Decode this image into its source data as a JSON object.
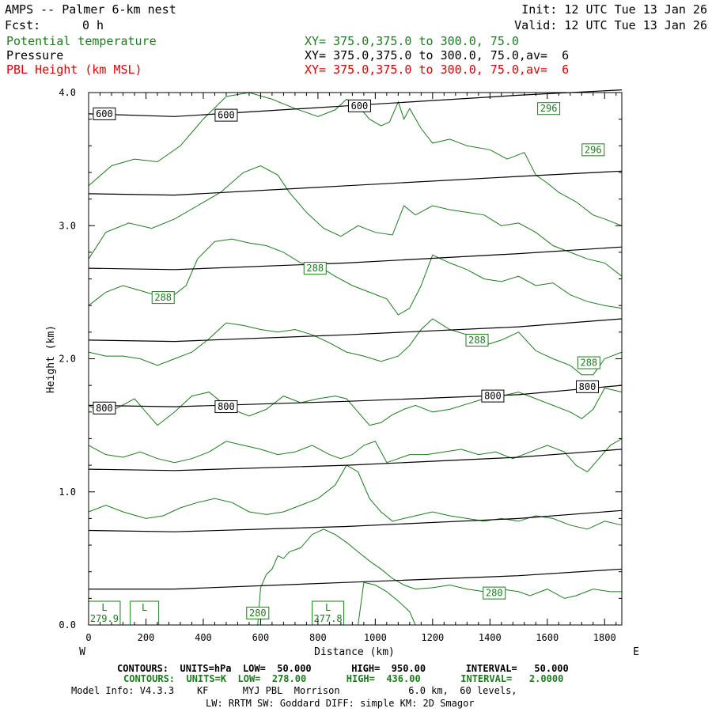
{
  "header": {
    "title": "AMPS -- Palmer 6-km nest",
    "fcst_label": "Fcst:",
    "fcst_value": "0 h",
    "init": "Init: 12 UTC Tue 13 Jan 26",
    "valid": "Valid: 12 UTC Tue 13 Jan 26",
    "fields": [
      {
        "name": "Potential temperature",
        "xy": "XY= 375.0,375.0 to 300.0, 75.0",
        "color": "#1f7a1f"
      },
      {
        "name": "Pressure",
        "xy": "XY= 375.0,375.0 to 300.0, 75.0,av=  6",
        "color": "#000000"
      },
      {
        "name": "PBL Height (km MSL)",
        "xy": "XY= 375.0,375.0 to 300.0, 75.0,av=  6",
        "color": "#e00000"
      }
    ]
  },
  "footer": {
    "line1": "CONTOURS:  UNITS=hPa  LOW=  50.000       HIGH=  950.00       INTERVAL=   50.000",
    "line2": "CONTOURS:  UNITS=K  LOW=  278.00       HIGH=  436.00       INTERVAL=   2.0000",
    "line3": "Model Info: V4.3.3    KF      MYJ PBL  Morrison            6.0 km,  60 levels,",
    "line4": "LW: RRTM SW: Goddard DIFF: simple KM: 2D Smagor"
  },
  "chart_data": {
    "type": "line",
    "xlabel": "Distance (km)",
    "ylabel": "Height (km)",
    "xlim": [
      0,
      1860
    ],
    "ylim": [
      0,
      4
    ],
    "x_ticks": [
      0,
      200,
      400,
      600,
      800,
      1000,
      1200,
      1400,
      1600,
      1800
    ],
    "y_ticks": [
      "0.0",
      "1.0",
      "2.0",
      "3.0",
      "4.0"
    ],
    "west_label": "W",
    "east_label": "E",
    "grid": false,
    "pressure_color": "#000000",
    "theta_color": "#1f7a1f",
    "pressure_contours": [
      {
        "x": [
          0,
          300,
          900,
          1500,
          1860
        ],
        "y": [
          3.84,
          3.82,
          3.9,
          3.98,
          4.02
        ]
      },
      {
        "x": [
          0,
          300,
          900,
          1500,
          1860
        ],
        "y": [
          3.24,
          3.23,
          3.3,
          3.37,
          3.41
        ]
      },
      {
        "x": [
          0,
          300,
          900,
          1500,
          1860
        ],
        "y": [
          2.68,
          2.67,
          2.72,
          2.79,
          2.84
        ]
      },
      {
        "x": [
          0,
          300,
          900,
          1500,
          1860
        ],
        "y": [
          2.14,
          2.13,
          2.18,
          2.24,
          2.3
        ]
      },
      {
        "x": [
          0,
          300,
          900,
          1500,
          1860
        ],
        "y": [
          1.65,
          1.64,
          1.68,
          1.73,
          1.8
        ]
      },
      {
        "x": [
          0,
          300,
          900,
          1500,
          1860
        ],
        "y": [
          1.17,
          1.16,
          1.2,
          1.26,
          1.32
        ]
      },
      {
        "x": [
          0,
          300,
          900,
          1500,
          1860
        ],
        "y": [
          0.71,
          0.7,
          0.74,
          0.8,
          0.86
        ]
      },
      {
        "x": [
          0,
          300,
          900,
          1500,
          1860
        ],
        "y": [
          0.27,
          0.27,
          0.32,
          0.37,
          0.42
        ]
      }
    ],
    "pressure_labels": [
      {
        "text": "600",
        "x": 55,
        "y": 3.84
      },
      {
        "text": "600",
        "x": 480,
        "y": 3.83
      },
      {
        "text": "600",
        "x": 945,
        "y": 3.9
      },
      {
        "text": "800",
        "x": 55,
        "y": 1.63
      },
      {
        "text": "800",
        "x": 480,
        "y": 1.64
      },
      {
        "text": "800",
        "x": 1410,
        "y": 1.72
      },
      {
        "text": "800",
        "x": 1740,
        "y": 1.79
      }
    ],
    "theta_contours": [
      {
        "x": [
          0,
          80,
          160,
          240,
          320,
          400,
          480,
          560,
          640,
          720,
          800,
          860,
          900,
          940,
          980,
          1020,
          1050,
          1080,
          1100,
          1120,
          1160,
          1200,
          1260,
          1320,
          1400,
          1460,
          1520,
          1560,
          1600,
          1640,
          1700,
          1760,
          1800,
          1860
        ],
        "y": [
          3.3,
          3.45,
          3.5,
          3.48,
          3.6,
          3.8,
          3.97,
          4.0,
          3.95,
          3.88,
          3.82,
          3.87,
          3.95,
          3.9,
          3.8,
          3.75,
          3.78,
          3.93,
          3.8,
          3.88,
          3.73,
          3.62,
          3.65,
          3.6,
          3.57,
          3.5,
          3.55,
          3.38,
          3.32,
          3.25,
          3.18,
          3.08,
          3.05,
          3.0
        ]
      },
      {
        "x": [
          0,
          60,
          140,
          220,
          300,
          380,
          460,
          540,
          600,
          660,
          700,
          760,
          820,
          880,
          940,
          1000,
          1060,
          1100,
          1140,
          1200,
          1260,
          1320,
          1380,
          1440,
          1500,
          1560,
          1620,
          1680,
          1740,
          1800,
          1860
        ],
        "y": [
          2.75,
          2.95,
          3.02,
          2.98,
          3.05,
          3.15,
          3.25,
          3.4,
          3.45,
          3.38,
          3.25,
          3.1,
          2.98,
          2.92,
          3.0,
          2.95,
          2.93,
          3.15,
          3.08,
          3.15,
          3.12,
          3.1,
          3.08,
          3.0,
          3.02,
          2.95,
          2.85,
          2.8,
          2.75,
          2.72,
          2.62
        ]
      },
      {
        "x": [
          0,
          60,
          120,
          200,
          280,
          340,
          380,
          440,
          500,
          560,
          620,
          680,
          740,
          800,
          860,
          920,
          980,
          1040,
          1080,
          1120,
          1160,
          1200,
          1260,
          1320,
          1380,
          1440,
          1500,
          1560,
          1620,
          1680,
          1740,
          1800,
          1860
        ],
        "y": [
          2.4,
          2.5,
          2.55,
          2.5,
          2.45,
          2.55,
          2.75,
          2.88,
          2.9,
          2.87,
          2.85,
          2.8,
          2.72,
          2.7,
          2.62,
          2.55,
          2.5,
          2.45,
          2.33,
          2.38,
          2.55,
          2.78,
          2.72,
          2.67,
          2.6,
          2.58,
          2.62,
          2.55,
          2.57,
          2.48,
          2.43,
          2.4,
          2.38
        ]
      },
      {
        "x": [
          0,
          60,
          120,
          180,
          240,
          300,
          360,
          420,
          480,
          540,
          600,
          660,
          720,
          780,
          840,
          900,
          960,
          1020,
          1080,
          1120,
          1160,
          1200,
          1260,
          1320,
          1380,
          1440,
          1500,
          1560,
          1620,
          1680,
          1720,
          1760,
          1800,
          1860
        ],
        "y": [
          2.05,
          2.02,
          2.02,
          2.0,
          1.95,
          2.0,
          2.05,
          2.15,
          2.27,
          2.25,
          2.22,
          2.2,
          2.22,
          2.18,
          2.12,
          2.05,
          2.02,
          1.98,
          2.02,
          2.1,
          2.22,
          2.3,
          2.22,
          2.18,
          2.1,
          2.14,
          2.2,
          2.06,
          2.0,
          1.95,
          1.88,
          1.88,
          2.0,
          2.05
        ]
      },
      {
        "x": [
          0,
          40,
          100,
          160,
          200,
          240,
          300,
          360,
          420,
          460,
          500,
          560,
          620,
          680,
          740,
          800,
          860,
          900,
          940,
          980,
          1020,
          1060,
          1100,
          1140,
          1200,
          1260,
          1320,
          1380,
          1440,
          1500,
          1560,
          1620,
          1680,
          1720,
          1760,
          1800,
          1860
        ],
        "y": [
          1.65,
          1.6,
          1.63,
          1.7,
          1.6,
          1.5,
          1.6,
          1.72,
          1.75,
          1.68,
          1.62,
          1.57,
          1.62,
          1.72,
          1.67,
          1.7,
          1.72,
          1.7,
          1.6,
          1.5,
          1.52,
          1.58,
          1.62,
          1.65,
          1.6,
          1.62,
          1.66,
          1.7,
          1.72,
          1.75,
          1.7,
          1.65,
          1.6,
          1.55,
          1.62,
          1.78,
          1.75
        ]
      },
      {
        "x": [
          0,
          60,
          120,
          180,
          240,
          300,
          360,
          420,
          480,
          540,
          600,
          660,
          720,
          780,
          840,
          880,
          920,
          960,
          1000,
          1040,
          1080,
          1120,
          1180,
          1240,
          1300,
          1360,
          1420,
          1480,
          1540,
          1600,
          1660,
          1700,
          1740,
          1780,
          1820,
          1860
        ],
        "y": [
          1.35,
          1.28,
          1.26,
          1.3,
          1.25,
          1.22,
          1.25,
          1.3,
          1.38,
          1.35,
          1.32,
          1.28,
          1.3,
          1.35,
          1.28,
          1.25,
          1.28,
          1.35,
          1.38,
          1.22,
          1.25,
          1.28,
          1.28,
          1.3,
          1.32,
          1.28,
          1.3,
          1.25,
          1.3,
          1.35,
          1.3,
          1.2,
          1.15,
          1.25,
          1.35,
          1.4
        ]
      },
      {
        "x": [
          0,
          60,
          120,
          200,
          260,
          320,
          380,
          440,
          500,
          560,
          620,
          680,
          740,
          800,
          860,
          900,
          940,
          980,
          1020,
          1060,
          1100,
          1140,
          1200,
          1260,
          1320,
          1380,
          1440,
          1500,
          1560,
          1620,
          1680,
          1740,
          1800,
          1860
        ],
        "y": [
          0.85,
          0.9,
          0.85,
          0.8,
          0.82,
          0.88,
          0.92,
          0.95,
          0.92,
          0.85,
          0.83,
          0.85,
          0.9,
          0.95,
          1.05,
          1.2,
          1.15,
          0.95,
          0.85,
          0.78,
          0.8,
          0.82,
          0.85,
          0.82,
          0.8,
          0.78,
          0.8,
          0.78,
          0.82,
          0.8,
          0.75,
          0.72,
          0.78,
          0.75
        ]
      },
      {
        "x": [
          590,
          600,
          620,
          640,
          660,
          680,
          700,
          740,
          780,
          820,
          860,
          900,
          940,
          980,
          1020,
          1060,
          1100,
          1140,
          1200,
          1260,
          1320,
          1380,
          1440,
          1500,
          1540,
          1600,
          1660,
          1700,
          1760,
          1820,
          1860
        ],
        "y": [
          0.0,
          0.28,
          0.38,
          0.42,
          0.52,
          0.5,
          0.55,
          0.58,
          0.68,
          0.72,
          0.68,
          0.62,
          0.55,
          0.48,
          0.42,
          0.35,
          0.3,
          0.27,
          0.28,
          0.3,
          0.27,
          0.25,
          0.27,
          0.25,
          0.22,
          0.27,
          0.2,
          0.22,
          0.27,
          0.25,
          0.25
        ]
      },
      {
        "x": [
          940,
          960,
          1000,
          1040,
          1080,
          1120,
          1140
        ],
        "y": [
          0.0,
          0.32,
          0.3,
          0.25,
          0.18,
          0.1,
          0.0
        ]
      }
    ],
    "theta_labels": [
      {
        "text": "296",
        "x": 1605,
        "y": 3.88
      },
      {
        "text": "296",
        "x": 1760,
        "y": 3.57
      },
      {
        "text": "288",
        "x": 260,
        "y": 2.46
      },
      {
        "text": "288",
        "x": 790,
        "y": 2.68
      },
      {
        "text": "288",
        "x": 1355,
        "y": 2.14
      },
      {
        "text": "288",
        "x": 1745,
        "y": 1.97
      },
      {
        "text": "280",
        "x": 590,
        "y": 0.09
      },
      {
        "text": "280",
        "x": 1415,
        "y": 0.24
      }
    ],
    "low_markers": [
      {
        "text": "L",
        "value": "279.9",
        "x": 55
      },
      {
        "text": "L",
        "value": "",
        "x": 195
      },
      {
        "text": "L",
        "value": "277.8",
        "x": 835
      }
    ]
  }
}
